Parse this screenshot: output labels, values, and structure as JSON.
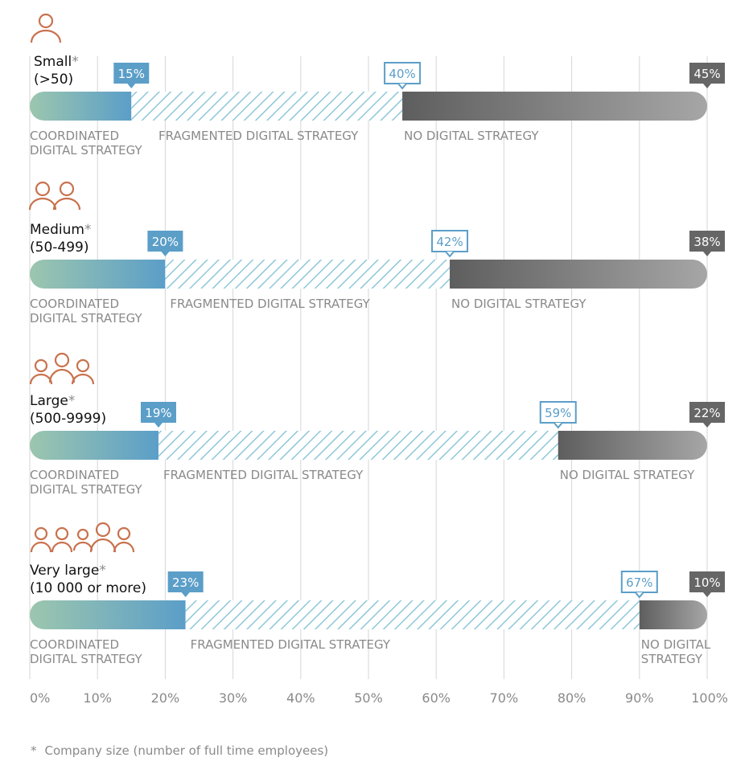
{
  "chart_data": {
    "type": "bar",
    "stacked": true,
    "orientation": "horizontal",
    "xlim": [
      0,
      100
    ],
    "x_ticks": [
      "0%",
      "10%",
      "20%",
      "30%",
      "40%",
      "50%",
      "60%",
      "70%",
      "80%",
      "90%",
      "100%"
    ],
    "segment_labels": [
      "COORDINATED DIGITAL STRATEGY",
      "FRAGMENTED DIGITAL STRATEGY",
      "NO DIGITAL STRATEGY"
    ],
    "rows": [
      {
        "size_name": "Small",
        "size_range": "(>50)",
        "people_icons": 1,
        "values": [
          15,
          40,
          45
        ],
        "value_labels": [
          "15%",
          "40%",
          "45%"
        ],
        "segment_texts": [
          [
            "COORDINATED",
            "DIGITAL STRATEGY"
          ],
          [
            "FRAGMENTED DIGITAL STRATEGY"
          ],
          [
            "NO DIGITAL STRATEGY"
          ]
        ]
      },
      {
        "size_name": "Medium",
        "size_range": "(50-499)",
        "people_icons": 2,
        "values": [
          20,
          42,
          38
        ],
        "value_labels": [
          "20%",
          "42%",
          "38%"
        ],
        "segment_texts": [
          [
            "COORDINATED",
            "DIGITAL STRATEGY"
          ],
          [
            "FRAGMENTED DIGITAL STRATEGY"
          ],
          [
            "NO DIGITAL STRATEGY"
          ]
        ]
      },
      {
        "size_name": "Large",
        "size_range": "(500-9999)",
        "people_icons": 3,
        "values": [
          19,
          59,
          22
        ],
        "value_labels": [
          "19%",
          "59%",
          "22%"
        ],
        "segment_texts": [
          [
            "COORDINATED",
            "DIGITAL STRATEGY"
          ],
          [
            "FRAGMENTED DIGITAL STRATEGY"
          ],
          [
            "NO DIGITAL STRATEGY"
          ]
        ]
      },
      {
        "size_name": "Very large",
        "size_range": "(10 000 or more)",
        "people_icons": 5,
        "values": [
          23,
          67,
          10
        ],
        "value_labels": [
          "23%",
          "67%",
          "10%"
        ],
        "segment_texts": [
          [
            "COORDINATED",
            "DIGITAL STRATEGY"
          ],
          [
            "FRAGMENTED DIGITAL STRATEGY"
          ],
          [
            "NO DIGITAL",
            "STRATEGY"
          ]
        ]
      }
    ],
    "asterisk": "*",
    "footnote": "Company size  (number of full time employees)",
    "grid": true
  },
  "colors": {
    "coordinated_start": "#9cc6ae",
    "coordinated_end": "#5b9ec8",
    "fragmented_stripe": "#8ec7d8",
    "none_start": "#5e5e5e",
    "none_end": "#a6a6a6",
    "label_blue": "#5b9ec8",
    "label_dark": "#666666",
    "icon": "#c8724e",
    "segment_text": "#8a8a8a",
    "grid": "#d6d6d6"
  }
}
